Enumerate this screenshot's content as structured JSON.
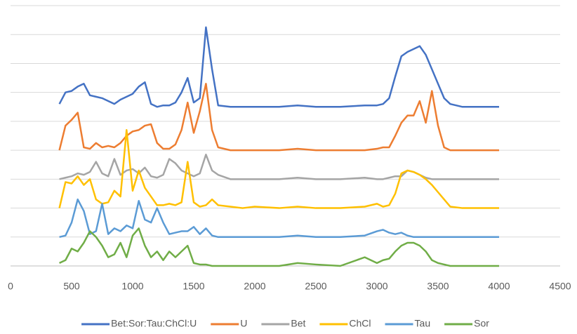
{
  "chart_data": {
    "type": "line",
    "x": [
      400,
      450,
      500,
      550,
      600,
      650,
      700,
      750,
      800,
      850,
      900,
      950,
      1000,
      1050,
      1100,
      1150,
      1200,
      1250,
      1300,
      1350,
      1400,
      1450,
      1500,
      1550,
      1600,
      1650,
      1700,
      1800,
      1900,
      2000,
      2200,
      2350,
      2500,
      2700,
      2900,
      3000,
      3050,
      3100,
      3150,
      3200,
      3250,
      3300,
      3350,
      3400,
      3450,
      3500,
      3550,
      3600,
      3700,
      3800,
      4000
    ],
    "series": [
      {
        "name": "Bet:Sor:Tau:ChCl:U",
        "color": "#4472c4",
        "values": [
          5.6,
          6.0,
          6.05,
          6.2,
          6.3,
          5.9,
          5.85,
          5.8,
          5.7,
          5.6,
          5.75,
          5.85,
          5.95,
          6.2,
          6.35,
          5.6,
          5.5,
          5.55,
          5.55,
          5.65,
          6.0,
          6.5,
          5.65,
          5.8,
          8.25,
          6.8,
          5.55,
          5.5,
          5.5,
          5.5,
          5.5,
          5.55,
          5.5,
          5.5,
          5.55,
          5.55,
          5.6,
          5.8,
          6.55,
          7.25,
          7.4,
          7.5,
          7.6,
          7.3,
          6.8,
          6.3,
          5.8,
          5.6,
          5.5,
          5.5,
          5.5
        ]
      },
      {
        "name": "U",
        "color": "#ed7d31",
        "values": [
          4.0,
          4.85,
          5.05,
          5.3,
          4.1,
          4.05,
          4.25,
          4.1,
          4.15,
          4.1,
          4.25,
          4.5,
          4.65,
          4.7,
          4.85,
          4.9,
          4.25,
          4.05,
          4.05,
          4.2,
          4.7,
          5.65,
          4.6,
          5.35,
          6.3,
          4.7,
          4.1,
          4.0,
          4.0,
          4.0,
          4.0,
          4.05,
          4.0,
          4.0,
          4.0,
          4.05,
          4.1,
          4.1,
          4.5,
          4.95,
          5.2,
          5.2,
          5.7,
          4.95,
          6.05,
          4.85,
          4.1,
          4.0,
          4.0,
          4.0,
          4.0
        ]
      },
      {
        "name": "Bet",
        "color": "#a5a5a5",
        "values": [
          3.0,
          3.05,
          3.1,
          3.2,
          3.15,
          3.25,
          3.6,
          3.2,
          3.1,
          3.7,
          3.15,
          3.3,
          3.35,
          3.2,
          3.4,
          3.1,
          3.05,
          3.15,
          3.7,
          3.55,
          3.3,
          3.2,
          3.1,
          3.2,
          3.85,
          3.3,
          3.15,
          3.0,
          3.0,
          3.0,
          3.0,
          3.05,
          3.0,
          3.0,
          3.05,
          3.0,
          3.0,
          3.05,
          3.1,
          3.1,
          3.3,
          3.25,
          3.15,
          3.05,
          3.0,
          3.0,
          3.0,
          3.0,
          3.0,
          3.0,
          3.0
        ]
      },
      {
        "name": "ChCl",
        "color": "#ffc000",
        "values": [
          2.0,
          2.9,
          2.85,
          3.1,
          2.8,
          3.0,
          2.3,
          2.15,
          2.2,
          2.6,
          2.4,
          4.7,
          2.6,
          3.3,
          2.7,
          2.4,
          2.1,
          2.1,
          2.15,
          2.1,
          2.2,
          3.6,
          2.2,
          2.05,
          2.1,
          2.3,
          2.1,
          2.05,
          2.0,
          2.05,
          2.0,
          2.05,
          2.0,
          2.0,
          2.05,
          2.15,
          2.05,
          2.1,
          2.5,
          3.2,
          3.3,
          3.25,
          3.15,
          3.0,
          2.8,
          2.55,
          2.3,
          2.05,
          2.0,
          2.0,
          2.0
        ]
      },
      {
        "name": "Tau",
        "color": "#5b9bd5",
        "values": [
          1.0,
          1.05,
          1.5,
          2.3,
          1.9,
          1.1,
          1.2,
          2.15,
          1.1,
          1.3,
          1.2,
          1.4,
          1.3,
          2.25,
          1.6,
          1.5,
          2.0,
          1.5,
          1.1,
          1.15,
          1.2,
          1.2,
          1.35,
          1.1,
          1.3,
          1.05,
          1.0,
          1.0,
          1.0,
          1.0,
          1.0,
          1.05,
          1.0,
          1.0,
          1.05,
          1.2,
          1.25,
          1.15,
          1.1,
          1.15,
          1.05,
          1.0,
          1.0,
          1.0,
          1.0,
          1.0,
          1.0,
          1.0,
          1.0,
          1.0,
          1.0
        ]
      },
      {
        "name": "Sor",
        "color": "#70ad47",
        "values": [
          0.1,
          0.2,
          0.6,
          0.5,
          0.8,
          1.2,
          1.0,
          0.7,
          0.3,
          0.4,
          0.8,
          0.3,
          1.05,
          1.3,
          0.7,
          0.3,
          0.5,
          0.2,
          0.5,
          0.3,
          0.5,
          0.7,
          0.1,
          0.05,
          0.05,
          0.0,
          0.0,
          0,
          0,
          0,
          0,
          0.1,
          0.05,
          0,
          0.3,
          0.1,
          0.2,
          0.25,
          0.5,
          0.7,
          0.8,
          0.8,
          0.7,
          0.5,
          0.2,
          0.1,
          0.05,
          0,
          0,
          0,
          0
        ]
      }
    ],
    "xlim": [
      0,
      4500
    ],
    "xticks": [
      0,
      500,
      1000,
      1500,
      2000,
      2500,
      3000,
      3500,
      4000,
      4500
    ],
    "ylim": [
      0,
      9
    ],
    "yticks": [
      0,
      1,
      2,
      3,
      4,
      5,
      6,
      7,
      8,
      9
    ],
    "grid": true,
    "legend": "bottom"
  }
}
